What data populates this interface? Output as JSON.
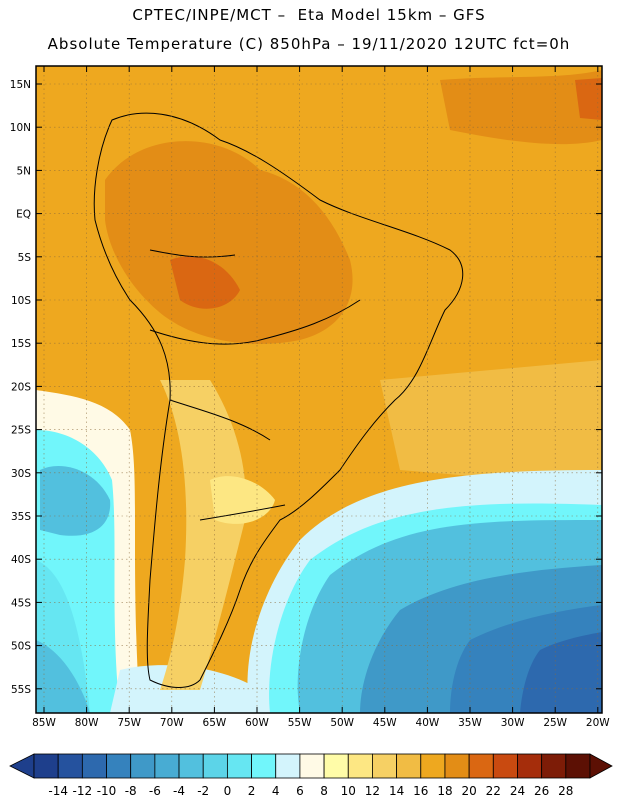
{
  "header": {
    "title_line1": "CPTEC/INPE/MCT –  Eta Model 15km – GFS",
    "title_line2": "Absolute Temperature (C) 850hPa – 19/11/2020 12UTC fct=0h"
  },
  "axes": {
    "lat_labels": [
      "15N",
      "10N",
      "5N",
      "EQ",
      "5S",
      "10S",
      "15S",
      "20S",
      "25S",
      "30S",
      "35S",
      "40S",
      "45S",
      "50S",
      "55S"
    ],
    "lon_labels": [
      "85W",
      "80W",
      "75W",
      "70W",
      "65W",
      "60W",
      "55W",
      "50W",
      "45W",
      "40W",
      "35W",
      "30W",
      "25W",
      "20W"
    ]
  },
  "colorbar": {
    "labels": [
      "-14",
      "-12",
      "-10",
      "-8",
      "-6",
      "-4",
      "-2",
      "0",
      "2",
      "4",
      "6",
      "8",
      "10",
      "12",
      "14",
      "16",
      "18",
      "20",
      "22",
      "24",
      "26",
      "28"
    ],
    "colors": [
      "#1e3f8c",
      "#25529e",
      "#2d69ae",
      "#3582bd",
      "#3f99c8",
      "#48acd3",
      "#52c0de",
      "#5cd4e8",
      "#66e6f2",
      "#71f6fb",
      "#d3f4fc",
      "#fffae6",
      "#fffca8",
      "#fde783",
      "#f6d064",
      "#f1bc44",
      "#eea81f",
      "#e38d16",
      "#da6712",
      "#c94a10",
      "#a52d0b",
      "#7d1c07",
      "#5c1004"
    ]
  },
  "legend_colors": {
    "land_dark_orange": "#e38d16",
    "ocean_orange": "#eea81f",
    "cold_blue": "#3582bd"
  }
}
